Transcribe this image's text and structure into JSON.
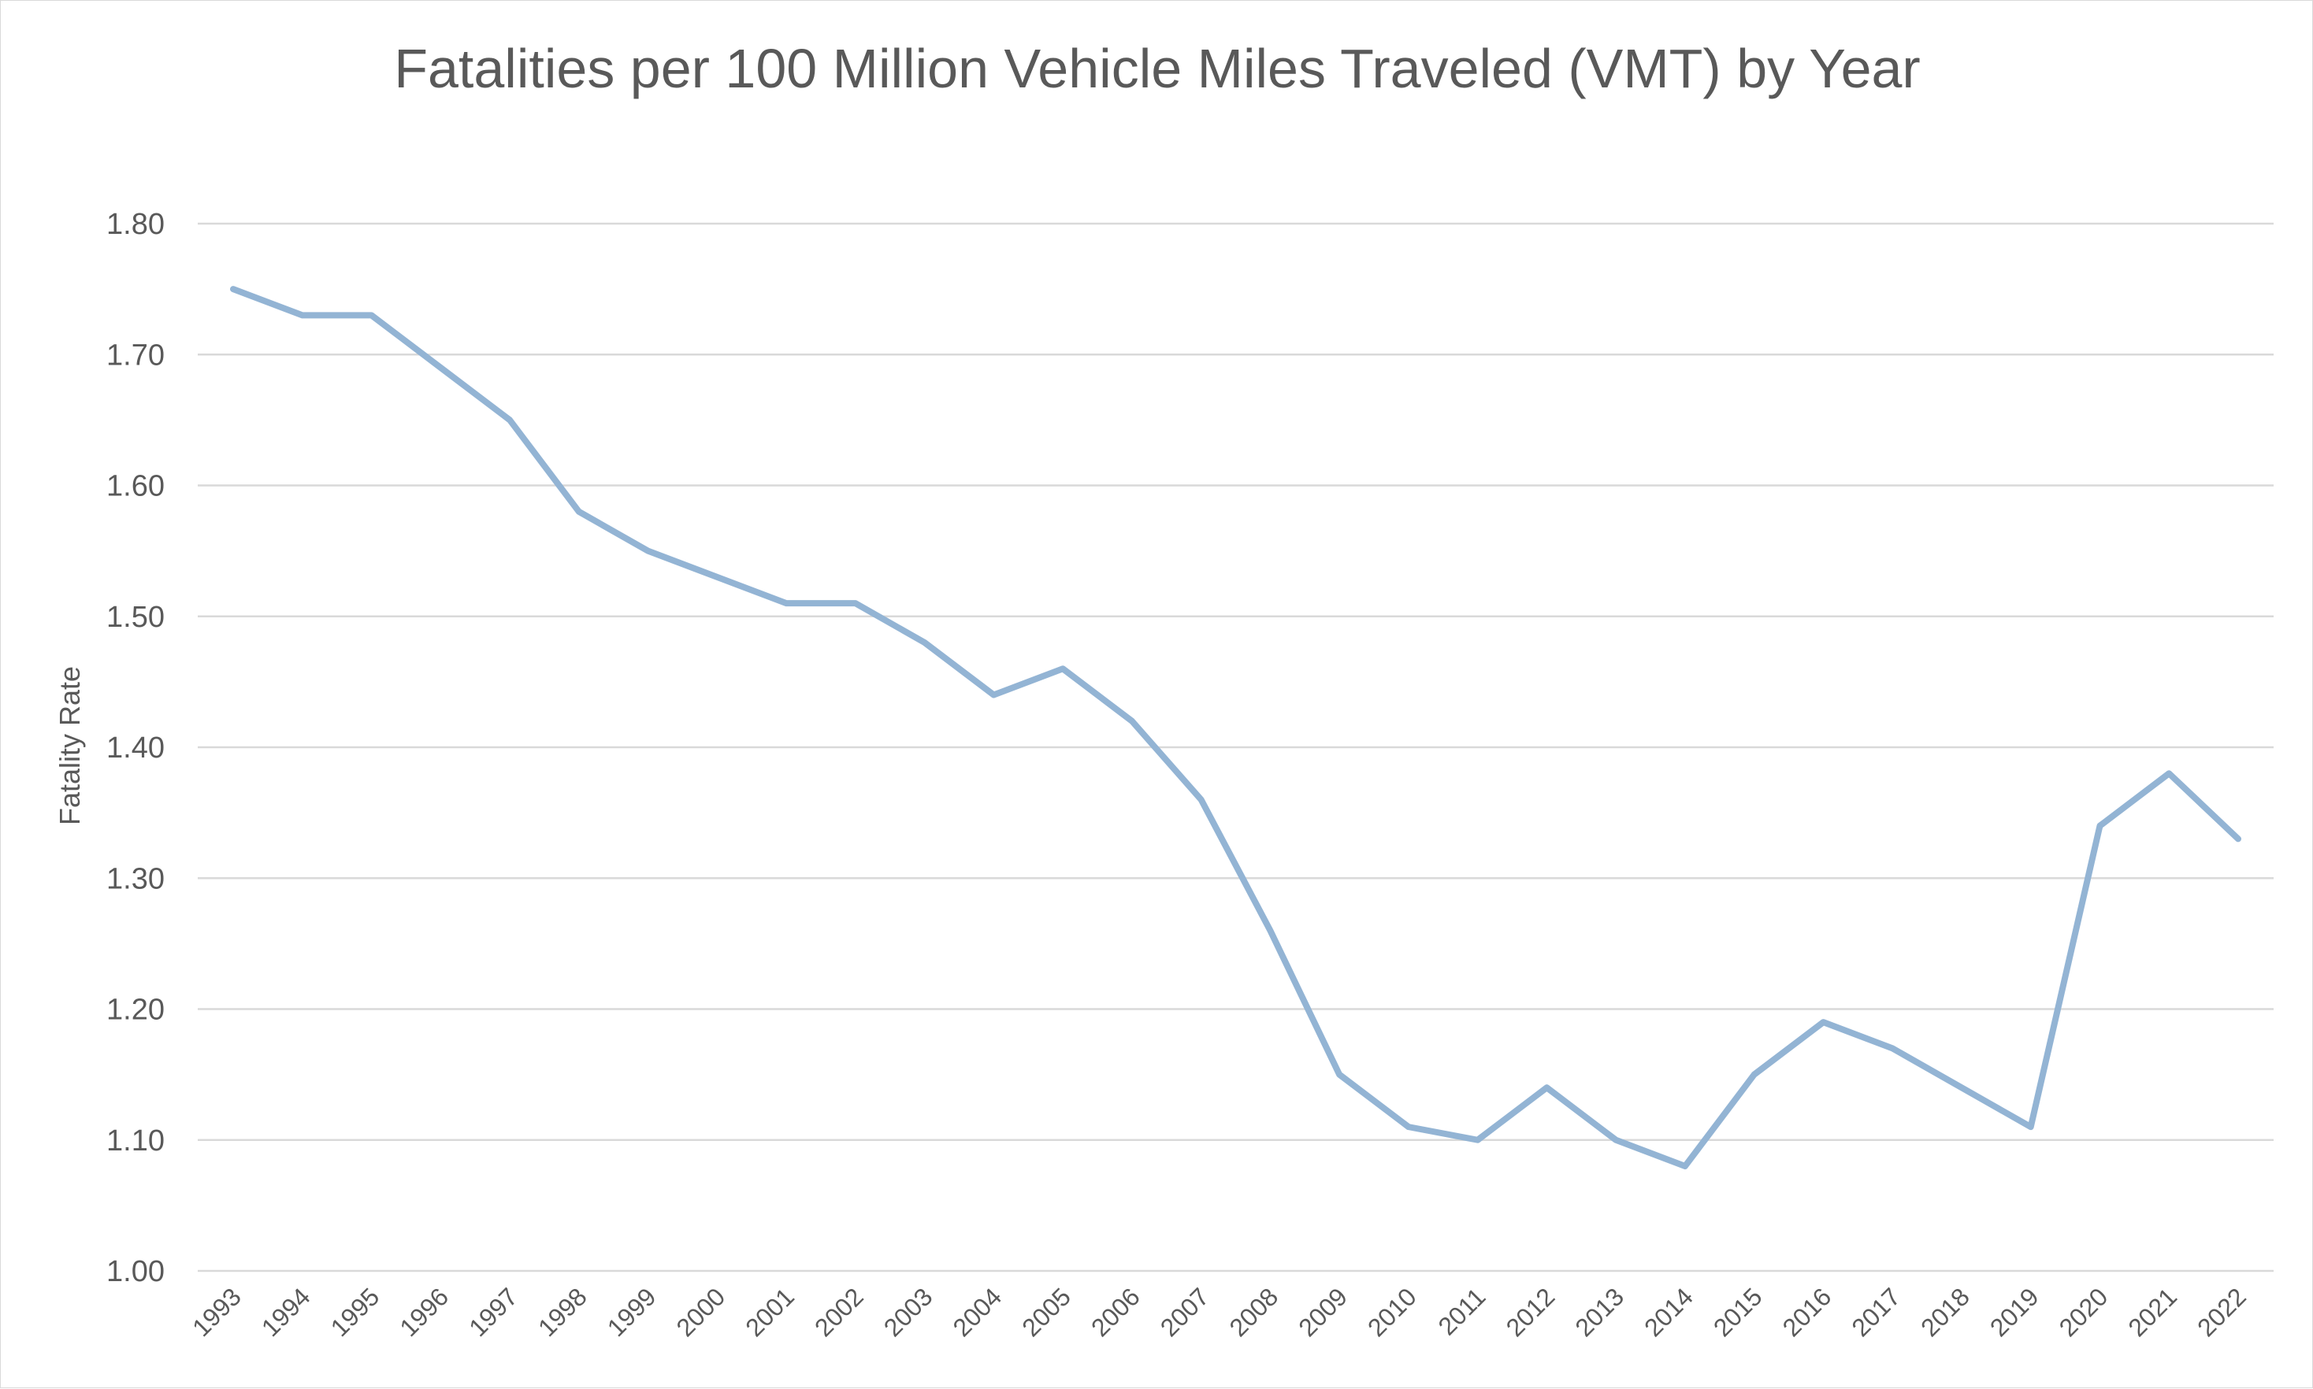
{
  "chart_data": {
    "type": "line",
    "title": "Fatalities per 100 Million Vehicle Miles Traveled (VMT) by Year",
    "xlabel": "",
    "ylabel": "Fatality Rate",
    "ylim": [
      1.0,
      1.8
    ],
    "y_ticks": [
      "1.00",
      "1.10",
      "1.20",
      "1.30",
      "1.40",
      "1.50",
      "1.60",
      "1.70",
      "1.80"
    ],
    "grid": true,
    "legend": "none",
    "categories": [
      "1993",
      "1994",
      "1995",
      "1996",
      "1997",
      "1998",
      "1999",
      "2000",
      "2001",
      "2002",
      "2003",
      "2004",
      "2005",
      "2006",
      "2007",
      "2008",
      "2009",
      "2010",
      "2011",
      "2012",
      "2013",
      "2014",
      "2015",
      "2016",
      "2017",
      "2018",
      "2019",
      "2020",
      "2021",
      "2022"
    ],
    "series": [
      {
        "values": [
          1.75,
          1.73,
          1.73,
          1.69,
          1.65,
          1.58,
          1.55,
          1.53,
          1.51,
          1.51,
          1.48,
          1.44,
          1.46,
          1.42,
          1.36,
          1.26,
          1.15,
          1.11,
          1.1,
          1.14,
          1.1,
          1.08,
          1.15,
          1.19,
          1.17,
          1.14,
          1.11,
          1.34,
          1.38,
          1.33
        ],
        "color": "#93b4d4"
      }
    ]
  }
}
